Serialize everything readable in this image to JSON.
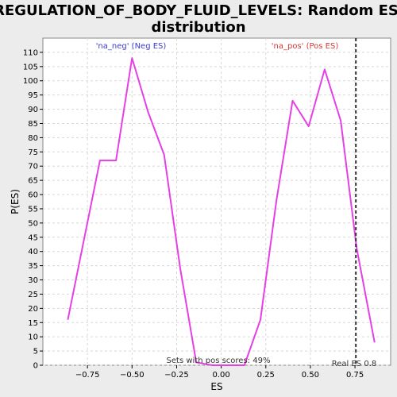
{
  "chart_data": {
    "type": "line",
    "title_lines": [
      "REGULATION_OF_BODY_FLUID_LEVELS: Random ES",
      "distribution"
    ],
    "xlabel": "ES",
    "ylabel": "P(ES)",
    "xlim": [
      -1.0,
      0.95
    ],
    "ylim": [
      0,
      115
    ],
    "x_ticks": [
      -0.75,
      -0.5,
      -0.25,
      0.0,
      0.25,
      0.5,
      0.75
    ],
    "x_tick_labels": [
      "−0.75",
      "−0.50",
      "−0.25",
      "0.00",
      "0.25",
      "0.50",
      "0.75"
    ],
    "y_ticks": [
      0,
      5,
      10,
      15,
      20,
      25,
      30,
      35,
      40,
      45,
      50,
      55,
      60,
      65,
      70,
      75,
      80,
      85,
      90,
      95,
      100,
      105,
      110
    ],
    "y_tick_labels": [
      "0",
      "5",
      "10",
      "15",
      "20",
      "25",
      "30",
      "35",
      "40",
      "45",
      "50",
      "55",
      "60",
      "65",
      "70",
      "75",
      "80",
      "85",
      "90",
      "95",
      "100",
      "105",
      "110"
    ],
    "grid": true,
    "series": [
      {
        "color": "#e540e5",
        "x": [
          -0.86,
          -0.68,
          -0.59,
          -0.5,
          -0.41,
          -0.32,
          -0.23,
          -0.14,
          -0.05,
          0.04,
          0.13,
          0.22,
          0.31,
          0.4,
          0.49,
          0.58,
          0.67,
          0.76,
          0.86
        ],
        "y": [
          16,
          72,
          72,
          108,
          89,
          74,
          34,
          1,
          0,
          0,
          0,
          16,
          58,
          93,
          84,
          104,
          86,
          41,
          8
        ]
      }
    ],
    "vline": {
      "x": 0.755,
      "style": "dashed",
      "color": "#333333"
    },
    "annotations": {
      "neg": {
        "text": "'na_neg' (Neg ES)",
        "color": "#3a3ad0"
      },
      "pos": {
        "text": "'na_pos' (Pos ES)",
        "color": "#d03a3a"
      },
      "pos_scores": {
        "text": "Sets with pos scores: 49%",
        "color": "#333333"
      },
      "real_es": {
        "text": "Real ES 0.8",
        "color": "#333333"
      }
    }
  }
}
